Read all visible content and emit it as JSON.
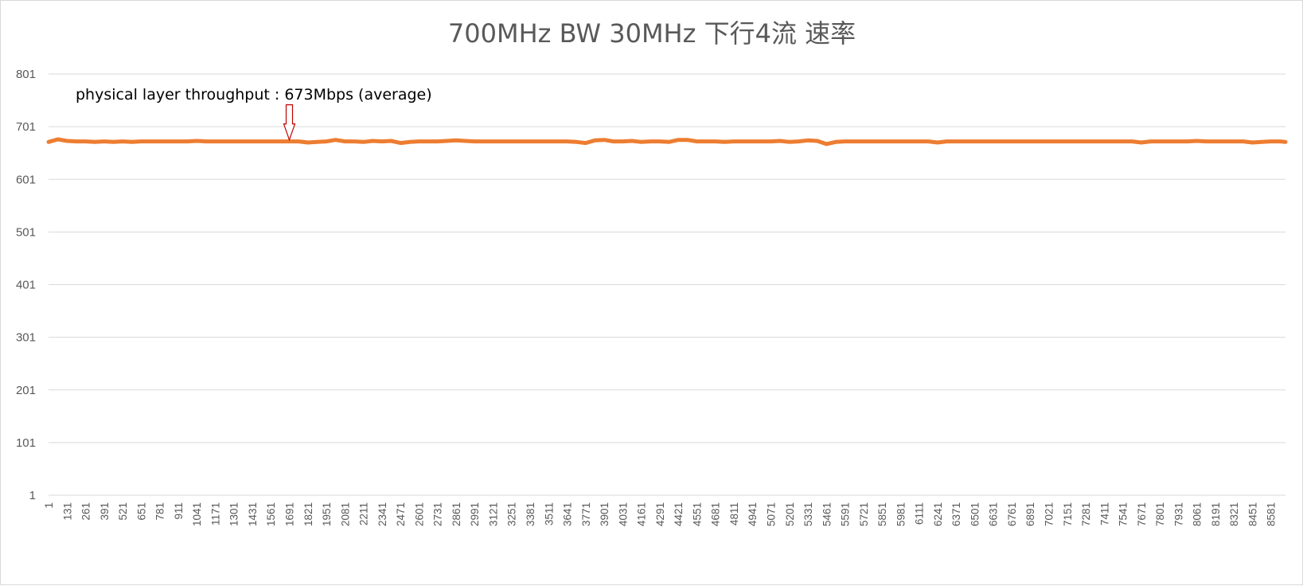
{
  "chart_data": {
    "type": "line",
    "title": "700MHz BW 30MHz 下行4流 速率",
    "xlabel": "",
    "ylabel": "",
    "ylim": [
      1,
      801
    ],
    "yticks": [
      1,
      101,
      201,
      301,
      401,
      501,
      601,
      701,
      801
    ],
    "xlim": [
      1,
      8683
    ],
    "xticks": [
      1,
      131,
      261,
      391,
      521,
      651,
      781,
      911,
      1041,
      1171,
      1301,
      1431,
      1561,
      1691,
      1821,
      1951,
      2081,
      2211,
      2341,
      2471,
      2601,
      2731,
      2861,
      2991,
      3121,
      3251,
      3381,
      3511,
      3641,
      3771,
      3901,
      4031,
      4161,
      4291,
      4421,
      4551,
      4681,
      4811,
      4941,
      5071,
      5201,
      5331,
      5461,
      5591,
      5721,
      5851,
      5981,
      6111,
      6241,
      6371,
      6501,
      6631,
      6761,
      6891,
      7021,
      7151,
      7281,
      7411,
      7541,
      7671,
      7801,
      7931,
      8061,
      8191,
      8321,
      8451,
      8581
    ],
    "grid": true,
    "legend": "none",
    "series": [
      {
        "color": "#ed7d31",
        "x": [
          1,
          66,
          131,
          196,
          261,
          326,
          391,
          456,
          521,
          586,
          651,
          716,
          781,
          846,
          911,
          976,
          1041,
          1106,
          1171,
          1236,
          1301,
          1366,
          1431,
          1496,
          1561,
          1626,
          1691,
          1756,
          1821,
          1886,
          1951,
          2016,
          2081,
          2146,
          2211,
          2276,
          2341,
          2406,
          2471,
          2536,
          2601,
          2666,
          2731,
          2796,
          2861,
          2926,
          2991,
          3056,
          3121,
          3186,
          3251,
          3316,
          3381,
          3446,
          3511,
          3576,
          3641,
          3706,
          3771,
          3836,
          3901,
          3966,
          4031,
          4096,
          4161,
          4226,
          4291,
          4356,
          4421,
          4486,
          4551,
          4616,
          4681,
          4746,
          4811,
          4876,
          4941,
          5006,
          5071,
          5136,
          5201,
          5266,
          5331,
          5396,
          5461,
          5526,
          5591,
          5656,
          5721,
          5786,
          5851,
          5916,
          5981,
          6046,
          6111,
          6176,
          6241,
          6306,
          6371,
          6436,
          6501,
          6566,
          6631,
          6696,
          6761,
          6826,
          6891,
          6956,
          7021,
          7086,
          7151,
          7216,
          7281,
          7346,
          7411,
          7476,
          7541,
          7606,
          7671,
          7736,
          7801,
          7866,
          7931,
          7996,
          8061,
          8126,
          8191,
          8256,
          8321,
          8386,
          8451,
          8516,
          8581,
          8646,
          8683
        ],
        "y": [
          672,
          677,
          674,
          673,
          673,
          672,
          673,
          672,
          673,
          672,
          673,
          673,
          673,
          673,
          673,
          673,
          674,
          673,
          673,
          673,
          673,
          673,
          673,
          673,
          673,
          673,
          673,
          673,
          671,
          672,
          673,
          676,
          673,
          673,
          672,
          674,
          673,
          674,
          670,
          672,
          673,
          673,
          673,
          674,
          675,
          674,
          673,
          673,
          673,
          673,
          673,
          673,
          673,
          673,
          673,
          673,
          673,
          672,
          670,
          675,
          676,
          673,
          673,
          674,
          672,
          673,
          673,
          672,
          676,
          676,
          673,
          673,
          673,
          672,
          673,
          673,
          673,
          673,
          673,
          674,
          672,
          673,
          675,
          674,
          668,
          672,
          673,
          673,
          673,
          673,
          673,
          673,
          673,
          673,
          673,
          673,
          671,
          673,
          673,
          673,
          673,
          673,
          673,
          673,
          673,
          673,
          673,
          673,
          673,
          673,
          673,
          673,
          673,
          673,
          673,
          673,
          673,
          673,
          671,
          673,
          673,
          673,
          673,
          673,
          674,
          673,
          673,
          673,
          673,
          673,
          671,
          672,
          673,
          673,
          672
        ]
      }
    ],
    "annotations": [
      {
        "text": "physical layer throughput : 673Mbps (average)",
        "x": 1691,
        "y": 673,
        "marker": "arrow-down"
      }
    ]
  }
}
